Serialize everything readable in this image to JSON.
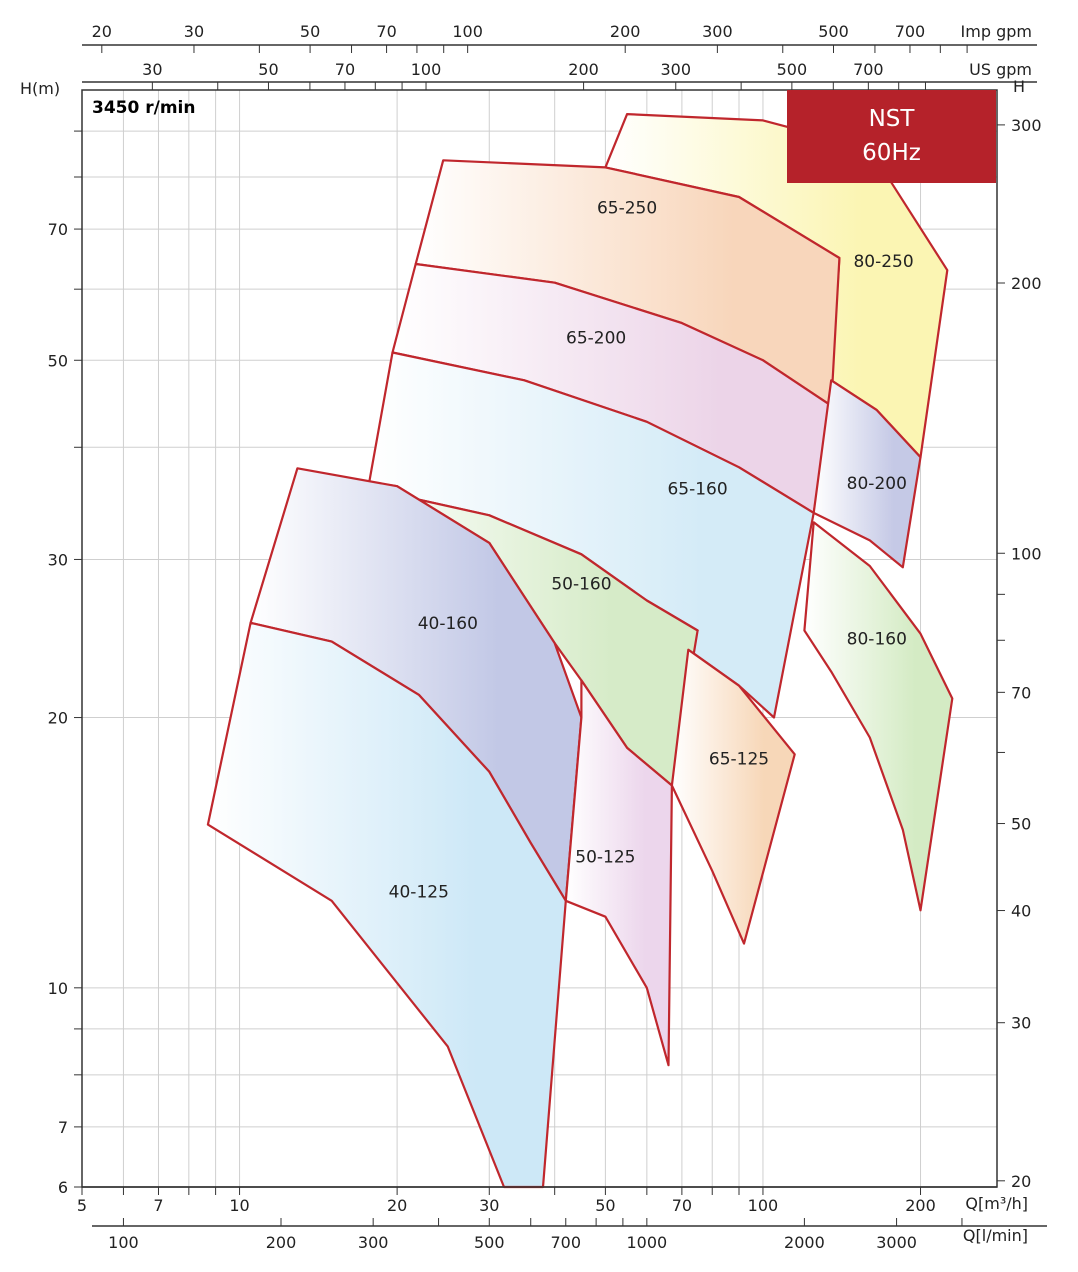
{
  "chart_data": {
    "type": "area",
    "title": "",
    "speed_label": "3450 r/min",
    "badge": {
      "line1": "NST",
      "line2": "60Hz"
    },
    "xlabel": "Q[m³/h]",
    "xlabel_lpm": "Q[l/min]",
    "xlabel_usgpm": "US gpm",
    "xlabel_impgpm": "Imp gpm",
    "ylabel": "H(m)",
    "ylabel_right": "H",
    "x_scale": "log",
    "y_scale": "log",
    "xlim": [
      5,
      280
    ],
    "ylim": [
      6,
      100
    ],
    "grid": true,
    "x_ticks": [
      5,
      7,
      10,
      20,
      30,
      50,
      70,
      100,
      200
    ],
    "y_ticks": [
      6,
      7,
      10,
      20,
      30,
      50,
      70
    ],
    "lpm_ticks": [
      100,
      200,
      300,
      500,
      700,
      1000,
      2000,
      3000
    ],
    "usgpm_ticks": [
      30,
      50,
      70,
      100,
      200,
      300,
      500,
      700
    ],
    "impgpm_ticks": [
      20,
      30,
      50,
      70,
      100,
      200,
      300,
      500,
      700
    ],
    "ft_ticks": [
      20,
      30,
      40,
      50,
      70,
      100,
      200,
      300
    ],
    "colors": {
      "outline": "#c0272d",
      "badge": "#b5222a"
    },
    "series": [
      {
        "name": "40-125",
        "color": "#cde8f7",
        "top": [
          [
            8.7,
            15.2
          ],
          [
            15,
            12.5
          ],
          [
            25,
            8.6
          ],
          [
            32,
            6.0
          ]
        ],
        "right": [
          [
            42,
            12.5
          ],
          [
            38,
            6.0
          ]
        ]
      },
      {
        "name": "40-160",
        "color": "#c2c8e6",
        "top": [
          [
            12.9,
            37.9
          ],
          [
            20,
            36.2
          ],
          [
            30,
            31.3
          ],
          [
            40,
            24.2
          ],
          [
            45,
            20.0
          ]
        ],
        "right": [
          [
            45,
            20.0
          ],
          [
            42,
            12.5
          ]
        ]
      },
      {
        "name": "50-125",
        "color": "#ecd6ec",
        "top": [
          [
            45,
            22.0
          ],
          [
            55,
            18.5
          ],
          [
            67,
            16.8
          ]
        ],
        "right": [
          [
            67,
            16.8
          ],
          [
            66,
            8.2
          ]
        ]
      },
      {
        "name": "50-160",
        "color": "#d6ebc8",
        "top": [
          [
            17.6,
            36.0
          ],
          [
            30,
            33.6
          ],
          [
            45,
            30.4
          ],
          [
            60,
            27.0
          ],
          [
            75,
            25.0
          ]
        ],
        "right": [
          [
            75,
            25.0
          ],
          [
            67,
            16.8
          ]
        ]
      },
      {
        "name": "65-125",
        "color": "#f7d7b8",
        "top": [
          [
            72,
            23.8
          ],
          [
            90,
            21.7
          ],
          [
            115,
            18.2
          ]
        ],
        "right": [
          [
            115,
            18.2
          ],
          [
            92,
            11.2
          ]
        ]
      },
      {
        "name": "65-160",
        "color": "#d4ebf7",
        "top": [
          [
            19.6,
            51.0
          ],
          [
            35,
            47.5
          ],
          [
            60,
            42.7
          ],
          [
            90,
            38.0
          ],
          [
            125,
            33.8
          ]
        ],
        "right": [
          [
            125,
            33.8
          ],
          [
            105,
            20.0
          ]
        ]
      },
      {
        "name": "65-200",
        "color": "#ecd4e8",
        "top": [
          [
            21.7,
            64.0
          ],
          [
            40,
            61.0
          ],
          [
            70,
            55.0
          ],
          [
            100,
            50.0
          ],
          [
            135,
            44.5
          ]
        ],
        "right": [
          [
            135,
            44.5
          ],
          [
            125,
            33.8
          ]
        ]
      },
      {
        "name": "65-250",
        "color": "#f8d6bb",
        "top": [
          [
            24.5,
            83.5
          ],
          [
            50,
            82.0
          ],
          [
            90,
            76.0
          ],
          [
            140,
            65.0
          ]
        ],
        "right": [
          [
            140,
            65.0
          ],
          [
            135,
            44.5
          ]
        ]
      },
      {
        "name": "80-160",
        "color": "#d4ebc4",
        "top": [
          [
            125,
            33.0
          ],
          [
            160,
            29.5
          ],
          [
            200,
            24.8
          ],
          [
            230,
            21.0
          ]
        ],
        "right": [
          [
            230,
            21.0
          ],
          [
            200,
            12.2
          ]
        ]
      },
      {
        "name": "80-200",
        "color": "#c5c9e6",
        "top": [
          [
            135,
            47.5
          ],
          [
            165,
            44.0
          ],
          [
            200,
            39.0
          ]
        ],
        "right": [
          [
            200,
            39.0
          ],
          [
            185,
            29.4
          ]
        ]
      },
      {
        "name": "80-250",
        "color": "#fbf5b3",
        "top": [
          [
            55,
            94.0
          ],
          [
            100,
            92.5
          ],
          [
            160,
            86.0
          ],
          [
            225,
            63.0
          ]
        ],
        "right": [
          [
            225,
            63.0
          ],
          [
            200,
            39.0
          ]
        ]
      }
    ]
  }
}
